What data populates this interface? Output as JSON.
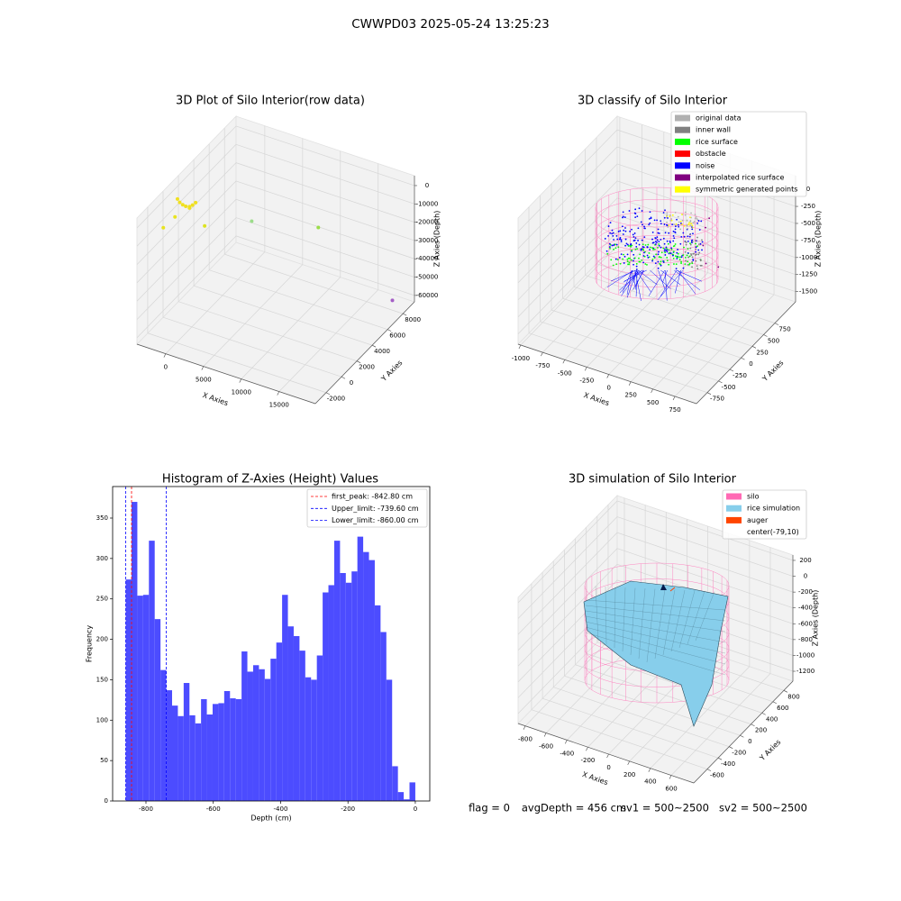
{
  "suptitle": "CWWPD03 2025-05-24 13:25:23",
  "chart_data": [
    {
      "type": "scatter3d",
      "title": "3D Plot of Silo Interior(row data)",
      "xlabel": "X Axies",
      "ylabel": "Y Axies",
      "zlabel": "Z Axies (Depth)",
      "x": [
        -2300,
        -1800,
        -1300,
        -800,
        -300,
        0,
        200,
        -100,
        -3770,
        -2224,
        1700,
        3860,
        12670,
        17540
      ],
      "y": [
        400,
        200,
        100,
        0,
        0,
        100,
        300,
        -200,
        0,
        0,
        0,
        4000,
        4000,
        8850
      ],
      "z": [
        1500,
        1200,
        1000,
        1300,
        1800,
        2600,
        3400,
        2200,
        -14500,
        -6500,
        -6000,
        -17700,
        -9000,
        -63000
      ],
      "colors": [
        "#f0e020",
        "#f0e020",
        "#f0e020",
        "#f0e020",
        "#f0e020",
        "#f0e020",
        "#f0e020",
        "#f0e020",
        "#e8e420",
        "#e8e420",
        "#dde320",
        "#9cdd8a",
        "#9bdc4a",
        "#a45ec6"
      ],
      "xlim": [
        -3800,
        19800
      ],
      "ylim": [
        -3400,
        9500
      ],
      "zlim": [
        -63500,
        5400
      ],
      "xticks": [
        0,
        5000,
        10000,
        15000
      ],
      "yticks": [
        -2000,
        0,
        2000,
        4000,
        6000,
        8000
      ],
      "zticks": [
        0,
        -10000,
        -20000,
        -30000,
        -40000,
        -50000,
        -60000
      ]
    },
    {
      "type": "classify3d",
      "title": "3D classify of Silo Interior",
      "xlabel": "X Axies",
      "ylabel": "Y Axies",
      "zlabel": "Z Axies (Depth)",
      "xlim": [
        -1030,
        995
      ],
      "ylim": [
        -990,
        1210
      ],
      "zlim": [
        -1650,
        200
      ],
      "xticks": [
        -1000,
        -750,
        -500,
        -250,
        0,
        250,
        500,
        750
      ],
      "yticks": [
        -750,
        -500,
        -250,
        0,
        250,
        500,
        750
      ],
      "zticks": [
        0,
        -250,
        -500,
        -750,
        -1000,
        -1250,
        -1500
      ],
      "legend_loc": "upper right",
      "legend": [
        {
          "name": "original data",
          "color": "#b0b0b0"
        },
        {
          "name": "inner wall",
          "color": "#808080"
        },
        {
          "name": "rice surface",
          "color": "#00ff00"
        },
        {
          "name": "obstacle",
          "color": "#ff0000"
        },
        {
          "name": "noise",
          "color": "#0000ff"
        },
        {
          "name": "interpolated rice surface",
          "color": "#800080"
        },
        {
          "name": "symmetric generated points",
          "color": "#ffff00"
        }
      ]
    },
    {
      "type": "histogram",
      "title": "Histogram of Z-Axies (Height) Values",
      "xlabel": "Depth (cm)",
      "ylabel": "Frequency",
      "color": "#4c4cff",
      "bins": [
        -860,
        -842.8,
        -825.6,
        -808.4,
        -791.2,
        -774,
        -756.8,
        -739.6,
        -722.4,
        -705.2,
        -688,
        -670.8,
        -653.6,
        -636.4,
        -619.2,
        -602,
        -584.8,
        -567.6,
        -550.4,
        -533.2,
        -516,
        -498.8,
        -481.6,
        -464.4,
        -447.2,
        -430,
        -412.8,
        -395.6,
        -378.4,
        -361.2,
        -344,
        -326.8,
        -309.6,
        -292.4,
        -275.2,
        -258,
        -240.8,
        -223.6,
        -206.4,
        -189.2,
        -172,
        -154.8,
        -137.6,
        -120.4,
        -103.2,
        -86,
        -68.8,
        -51.6,
        -34.4,
        -17.2,
        0
      ],
      "counts": [
        274,
        370,
        254,
        255,
        322,
        225,
        162,
        137,
        118,
        105,
        146,
        106,
        96,
        126,
        107,
        120,
        121,
        136,
        127,
        126,
        185,
        160,
        168,
        163,
        151,
        176,
        196,
        255,
        216,
        204,
        186,
        153,
        150,
        180,
        258,
        267,
        322,
        282,
        270,
        284,
        327,
        308,
        298,
        242,
        209,
        150,
        43,
        11,
        2,
        23
      ],
      "xlim": [
        -899,
        43
      ],
      "ylim": [
        0,
        389
      ],
      "xticks": [
        -800,
        -600,
        -400,
        -200,
        0
      ],
      "yticks": [
        0,
        50,
        100,
        150,
        200,
        250,
        300,
        350
      ],
      "legend_loc": "upper right",
      "vlines": [
        {
          "name": "first_peak: -842.80 cm",
          "x": -842.8,
          "color": "#ff0000"
        },
        {
          "name": "Upper_limit: -739.60 cm",
          "x": -739.6,
          "color": "#0000ff"
        },
        {
          "name": "Lower_limit: -860.00 cm",
          "x": -860,
          "color": "#0000ff"
        }
      ]
    },
    {
      "type": "surface3d",
      "title": "3D simulation of Silo Interior",
      "xlabel": "X Axies",
      "ylabel": "Y Axies",
      "zlabel": "Z Axies (Depth)",
      "xlim": [
        -869,
        816
      ],
      "ylim": [
        -846,
        965
      ],
      "zlim": [
        -1325,
        268
      ],
      "xticks": [
        -800,
        -600,
        -400,
        -200,
        0,
        200,
        400,
        600
      ],
      "yticks": [
        -600,
        -400,
        -200,
        0,
        200,
        400,
        600,
        800
      ],
      "zticks": [
        200,
        0,
        -200,
        -400,
        -600,
        -800,
        -1000,
        -1200
      ],
      "legend_loc": "upper right",
      "legend": [
        {
          "name": "silo",
          "color": "#ff69b4"
        },
        {
          "name": "rice simulation",
          "color": "#87ceeb"
        },
        {
          "name": "auger",
          "color": "#ff4500"
        },
        {
          "name": "center(-79,10)"
        }
      ]
    }
  ],
  "footer": [
    "flag = 0",
    "avgDepth = 456 cm",
    "sv1 = 500~2500",
    "sv2 = 500~2500"
  ]
}
